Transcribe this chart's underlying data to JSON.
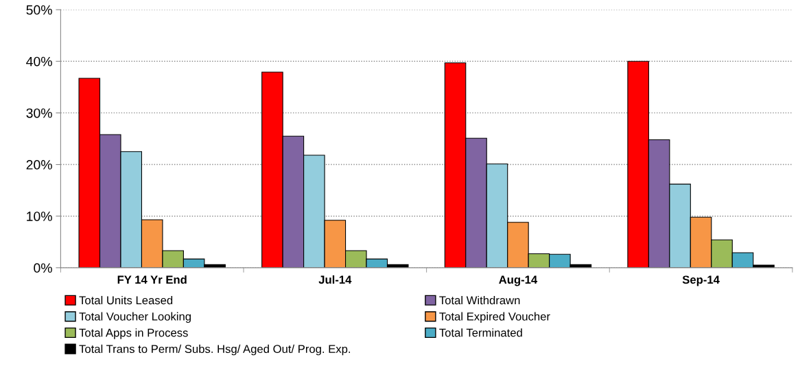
{
  "chart_data": {
    "type": "bar",
    "categories": [
      "FY 14 Yr End",
      "Jul-14",
      "Aug-14",
      "Sep-14"
    ],
    "series": [
      {
        "name": "Total Units Leased",
        "color": "#ff0000",
        "values": [
          36.7,
          37.9,
          39.7,
          40.0
        ]
      },
      {
        "name": "Total Withdrawn",
        "color": "#8064a2",
        "values": [
          25.8,
          25.5,
          25.1,
          24.8
        ]
      },
      {
        "name": "Total Voucher Looking",
        "color": "#93cddd",
        "values": [
          22.5,
          21.8,
          20.1,
          16.2
        ]
      },
      {
        "name": "Total Expired Voucher",
        "color": "#f79646",
        "values": [
          9.3,
          9.2,
          8.8,
          9.8
        ]
      },
      {
        "name": "Total Apps in Process",
        "color": "#9bbb59",
        "values": [
          3.3,
          3.3,
          2.7,
          5.4
        ]
      },
      {
        "name": "Total Terminated",
        "color": "#4bacc6",
        "values": [
          1.7,
          1.7,
          2.6,
          2.9
        ]
      },
      {
        "name": "Total Trans to Perm/ Subs. Hsg/ Aged Out/ Prog. Exp.",
        "color": "#000000",
        "values": [
          0.6,
          0.6,
          0.6,
          0.5
        ]
      }
    ],
    "ylim": [
      0,
      50
    ],
    "yticks": [
      {
        "value": 0,
        "label": "0%"
      },
      {
        "value": 10,
        "label": "10%"
      },
      {
        "value": 20,
        "label": "20%"
      },
      {
        "value": 30,
        "label": "30%"
      },
      {
        "value": 40,
        "label": "40%"
      },
      {
        "value": 50,
        "label": "50%"
      }
    ],
    "grid": "y",
    "legend": "bottom"
  }
}
